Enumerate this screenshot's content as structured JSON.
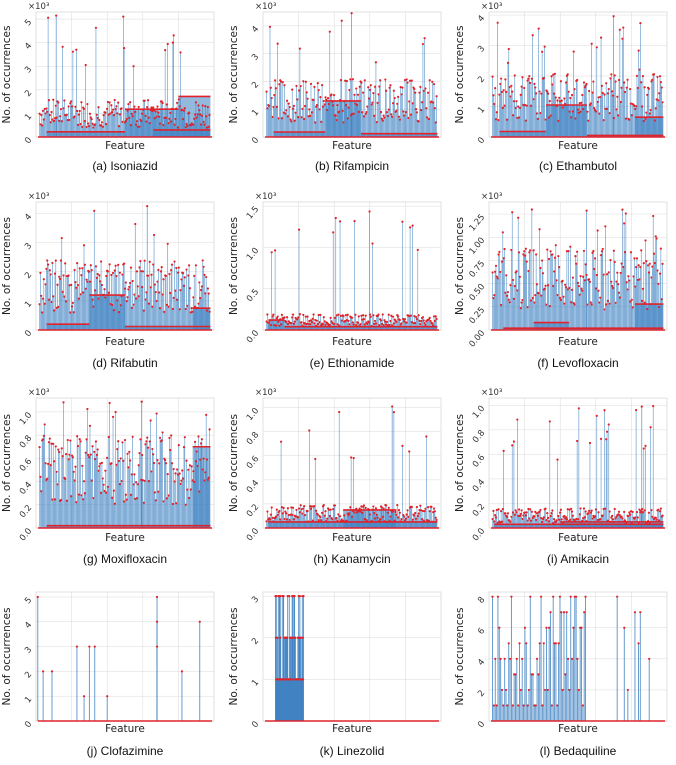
{
  "figure": {
    "xlabel": "Feature",
    "ylabel": "No. of occurrences",
    "stem_color": "#3b7fc1",
    "marker_color": "#e0232a",
    "grid_color": "#d9d9d9"
  },
  "chart_data": [
    {
      "type": "stem",
      "panel": "a",
      "caption": "(a) Isoniazid",
      "multiplier": "×10³",
      "ylim": [
        0,
        5.3
      ],
      "yticks": [
        "0",
        "1",
        "2",
        "3",
        "4",
        "5"
      ],
      "ytick_values": [
        0,
        1,
        2,
        3,
        4,
        5
      ],
      "series": {
        "n_features": 360,
        "peak": 5.2,
        "mean_height": 1.0,
        "scale_ratio": 0.45,
        "bands": [
          [
            0.06,
            0.5,
            0.22
          ],
          [
            0.5,
            0.8,
            1.18
          ],
          [
            0.8,
            0.98,
            1.72
          ],
          [
            0.66,
            0.98,
            0.3
          ]
        ]
      }
    },
    {
      "type": "stem",
      "panel": "b",
      "caption": "(b) Rifampicin",
      "multiplier": "×10³",
      "ylim": [
        0,
        4.5
      ],
      "yticks": [
        "0",
        "1",
        "2",
        "3",
        "4"
      ],
      "ytick_values": [
        0,
        1,
        2,
        3,
        4
      ],
      "series": {
        "n_features": 360,
        "peak": 4.5,
        "mean_height": 1.3,
        "scale_ratio": 0.4,
        "bands": [
          [
            0.06,
            0.35,
            0.18
          ],
          [
            0.35,
            0.55,
            1.3
          ],
          [
            0.55,
            0.98,
            0.12
          ]
        ]
      }
    },
    {
      "type": "stem",
      "panel": "c",
      "caption": "(c) Ethambutol",
      "multiplier": "×10³",
      "ylim": [
        0,
        4.1
      ],
      "yticks": [
        "0",
        "1",
        "2",
        "3",
        "4"
      ],
      "ytick_values": [
        0,
        1,
        2,
        3,
        4
      ],
      "series": {
        "n_features": 360,
        "peak": 4.0,
        "mean_height": 1.3,
        "scale_ratio": 0.4,
        "bands": [
          [
            0.06,
            0.32,
            0.18
          ],
          [
            0.32,
            0.55,
            1.05
          ],
          [
            0.55,
            0.98,
            0.05
          ],
          [
            0.82,
            0.98,
            0.65
          ]
        ]
      }
    },
    {
      "type": "stem",
      "panel": "d",
      "caption": "(d) Rifabutin",
      "multiplier": "×10³",
      "ylim": [
        0,
        4.4
      ],
      "yticks": [
        "0",
        "1",
        "2",
        "3",
        "4"
      ],
      "ytick_values": [
        0,
        1,
        2,
        3,
        4
      ],
      "series": {
        "n_features": 360,
        "peak": 4.3,
        "mean_height": 1.5,
        "scale_ratio": 0.4,
        "bands": [
          [
            0.06,
            0.3,
            0.2
          ],
          [
            0.3,
            0.5,
            1.2
          ],
          [
            0.5,
            0.98,
            0.12
          ],
          [
            0.88,
            0.98,
            0.75
          ]
        ]
      }
    },
    {
      "type": "stem",
      "panel": "e",
      "caption": "(e) Ethionamide",
      "multiplier": "×10³",
      "ylim": [
        0,
        1.55
      ],
      "yticks": [
        "0.0",
        "0.5",
        "1.0",
        "1.5"
      ],
      "ytick_values": [
        0,
        0.5,
        1.0,
        1.5
      ],
      "series": {
        "n_features": 360,
        "peak": 1.45,
        "mean_height": 0.12,
        "scale_ratio": 0.6,
        "bands": [
          [
            0.03,
            0.12,
            0.12
          ],
          [
            0.12,
            0.98,
            0.04
          ]
        ]
      }
    },
    {
      "type": "stem",
      "panel": "f",
      "caption": "(f) Levofloxacin",
      "multiplier": "×10³",
      "ylim": [
        0,
        1.38
      ],
      "yticks": [
        "0.00",
        "0.25",
        "0.50",
        "0.75",
        "1.00",
        "1.25"
      ],
      "ytick_values": [
        0,
        0.25,
        0.5,
        0.75,
        1.0,
        1.25
      ],
      "series": {
        "n_features": 360,
        "peak": 1.3,
        "mean_height": 0.55,
        "scale_ratio": 0.35,
        "bands": [
          [
            0.08,
            0.98,
            0.02
          ],
          [
            0.25,
            0.45,
            0.08
          ],
          [
            0.82,
            0.98,
            0.28
          ]
        ]
      }
    },
    {
      "type": "stem",
      "panel": "g",
      "caption": "(g) Moxifloxacin",
      "multiplier": "×10³",
      "ylim": [
        0,
        1.12
      ],
      "yticks": [
        "0.0",
        "0.2",
        "0.4",
        "0.6",
        "0.8",
        "1.0"
      ],
      "ytick_values": [
        0,
        0.2,
        0.4,
        0.6,
        0.8,
        1.0
      ],
      "series": {
        "n_features": 360,
        "peak": 1.1,
        "mean_height": 0.5,
        "scale_ratio": 0.35,
        "bands": [
          [
            0.06,
            0.98,
            0.02
          ],
          [
            0.88,
            0.98,
            0.7
          ]
        ]
      }
    },
    {
      "type": "stem",
      "panel": "h",
      "caption": "(h) Kanamycin",
      "multiplier": "×10³",
      "ylim": [
        0,
        1.08
      ],
      "yticks": [
        "0.0",
        "0.2",
        "0.4",
        "0.6",
        "0.8",
        "1.0"
      ],
      "ytick_values": [
        0,
        0.2,
        0.4,
        0.6,
        0.8,
        1.0
      ],
      "series": {
        "n_features": 360,
        "peak": 1.02,
        "mean_height": 0.12,
        "scale_ratio": 0.45,
        "bands": [
          [
            0.03,
            0.98,
            0.05
          ],
          [
            0.45,
            0.75,
            0.15
          ]
        ]
      }
    },
    {
      "type": "stem",
      "panel": "i",
      "caption": "(i) Amikacin",
      "multiplier": "×10³",
      "ylim": [
        0,
        1.06
      ],
      "yticks": [
        "0.0",
        "0.2",
        "0.4",
        "0.6",
        "0.8",
        "1.0"
      ],
      "ytick_values": [
        0,
        0.2,
        0.4,
        0.6,
        0.8,
        1.0
      ],
      "series": {
        "n_features": 360,
        "peak": 1.0,
        "mean_height": 0.1,
        "scale_ratio": 0.45,
        "bands": [
          [
            0.03,
            0.98,
            0.03
          ],
          [
            0.4,
            0.98,
            0.05
          ]
        ]
      }
    },
    {
      "type": "stem",
      "panel": "j",
      "caption": "(j) Clofazimine",
      "multiplier": "",
      "ylim": [
        0,
        5.2
      ],
      "yticks": [
        "0",
        "1",
        "2",
        "3",
        "4",
        "5"
      ],
      "ytick_values": [
        0,
        1,
        2,
        3,
        4,
        5
      ],
      "series": {
        "n_features": 360,
        "discrete": [
          [
            0.01,
            5
          ],
          [
            0.04,
            2
          ],
          [
            0.09,
            2
          ],
          [
            0.23,
            3
          ],
          [
            0.27,
            1
          ],
          [
            0.3,
            3
          ],
          [
            0.33,
            3
          ],
          [
            0.4,
            1
          ],
          [
            0.68,
            5
          ],
          [
            0.68,
            4
          ],
          [
            0.68,
            3
          ],
          [
            0.82,
            2
          ],
          [
            0.92,
            4
          ]
        ],
        "baseline": 0
      }
    },
    {
      "type": "stem",
      "panel": "k",
      "caption": "(k) Linezolid",
      "multiplier": "",
      "ylim": [
        0,
        3.1
      ],
      "yticks": [
        "0",
        "1",
        "2",
        "3"
      ],
      "ytick_values": [
        0,
        1,
        2,
        3
      ],
      "series": {
        "n_features": 360,
        "dense_range": [
          0.07,
          0.23
        ],
        "dense_values": [
          1,
          2,
          3
        ],
        "baseline": 0
      }
    },
    {
      "type": "stem",
      "panel": "l",
      "caption": "(l) Bedaquiline",
      "multiplier": "",
      "ylim": [
        0,
        8.3
      ],
      "yticks": [
        "0",
        "2",
        "4",
        "6",
        "8"
      ],
      "ytick_values": [
        0,
        2,
        4,
        6,
        8
      ],
      "series": {
        "n_features": 360,
        "dense_range": [
          0.02,
          0.55
        ],
        "dense_values": [
          1,
          2,
          3,
          4,
          5,
          6,
          7,
          8
        ],
        "sparse": [
          [
            0.72,
            8
          ],
          [
            0.76,
            6
          ],
          [
            0.78,
            2
          ],
          [
            0.82,
            7
          ],
          [
            0.85,
            7
          ],
          [
            0.9,
            4
          ],
          [
            0.84,
            5
          ]
        ],
        "baseline": 0
      }
    }
  ]
}
